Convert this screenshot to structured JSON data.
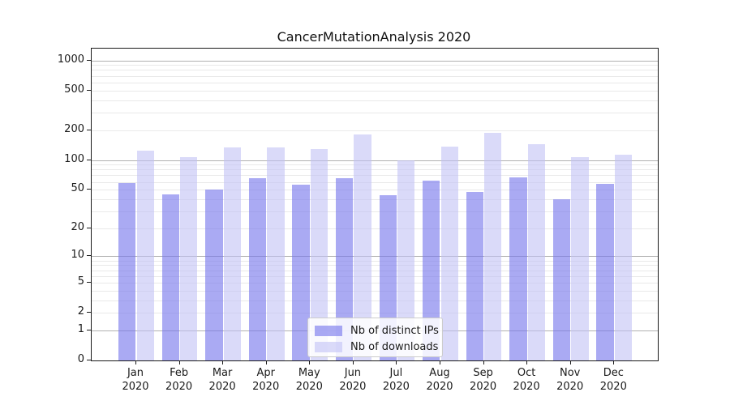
{
  "title": "CancerMutationAnalysis 2020",
  "chart_data": {
    "type": "bar",
    "title": "CancerMutationAnalysis 2020",
    "xlabel": "",
    "ylabel": "",
    "scale": "log10(1+x)",
    "y_max": 1310,
    "y_ticks": [
      0,
      1,
      2,
      5,
      10,
      20,
      50,
      100,
      200,
      500,
      1000
    ],
    "grid": {
      "major_lines": [
        1,
        10,
        100,
        1000
      ],
      "minor_bases": [
        1,
        10,
        100
      ],
      "grid_on": true
    },
    "categories": [
      "Jan 2020",
      "Feb 2020",
      "Mar 2020",
      "Apr 2020",
      "May 2020",
      "Jun 2020",
      "Jul 2020",
      "Aug 2020",
      "Sep 2020",
      "Oct 2020",
      "Nov 2020",
      "Dec 2020"
    ],
    "series": [
      {
        "name": "Nb of distinct IPs",
        "color": "rgba(118,118,236,0.62)",
        "solid_color": "#aaaaf1",
        "values": [
          58,
          45,
          50,
          66,
          56,
          65,
          44,
          62,
          47,
          67,
          40,
          57
        ]
      },
      {
        "name": "Nb of downloads",
        "color": "rgba(193,193,245,0.60)",
        "solid_color": "#dadaf8",
        "values": [
          125,
          107,
          134,
          134,
          130,
          180,
          100,
          136,
          186,
          145,
          107,
          113
        ]
      }
    ],
    "legend": {
      "position": "bottom-center"
    },
    "colors": {
      "grid_major": "#b0b0b0",
      "grid_minor": "#e9e9e9",
      "spine": "#1a1a1a",
      "background": "#ffffff"
    }
  }
}
